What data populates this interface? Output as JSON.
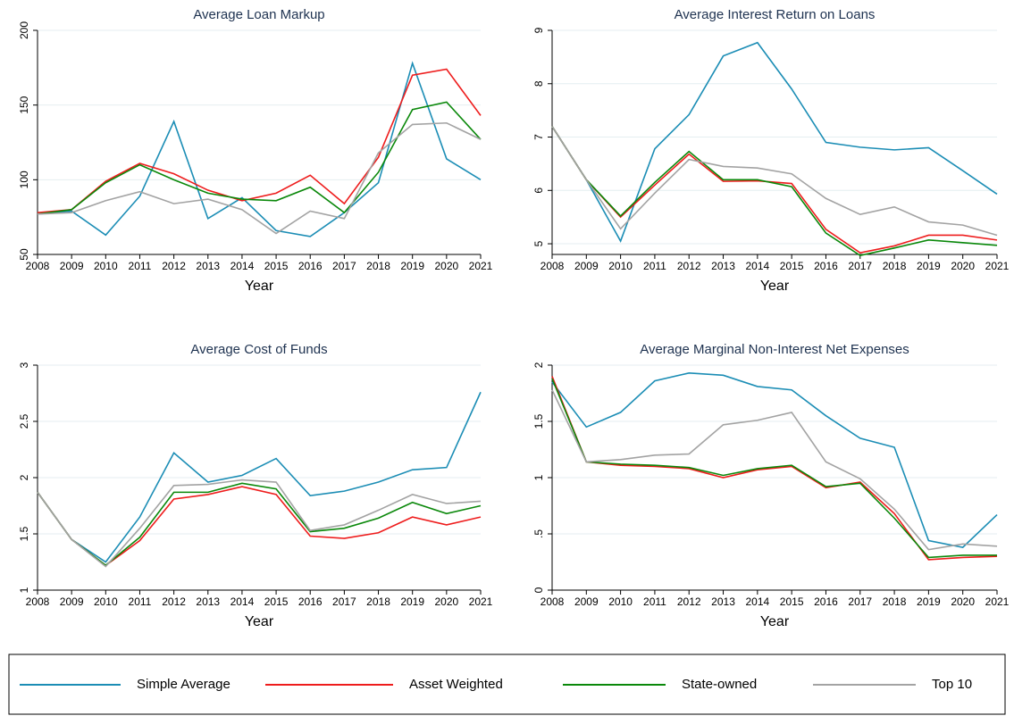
{
  "chart_data": [
    {
      "type": "line",
      "title": "Average Loan Markup",
      "x_label": "Year",
      "categories": [
        "2008",
        "2009",
        "2010",
        "2011",
        "2012",
        "2013",
        "2014",
        "2015",
        "2016",
        "2017",
        "2018",
        "2019",
        "2020",
        "2021"
      ],
      "ylim": [
        50,
        200
      ],
      "yticks": [
        50,
        100,
        150,
        200
      ],
      "grid": true,
      "series": [
        {
          "color": "#1b8db5",
          "values": [
            77,
            79,
            63,
            89,
            139,
            74,
            88,
            66,
            62,
            78,
            98,
            178,
            114,
            100
          ]
        },
        {
          "color": "#ee1c1c",
          "values": [
            78,
            80,
            99,
            111,
            104,
            93,
            86,
            91,
            103,
            84,
            115,
            170,
            174,
            143
          ]
        },
        {
          "color": "#0a880a",
          "values": [
            77,
            80,
            98,
            110,
            100,
            91,
            87,
            86,
            95,
            78,
            105,
            147,
            152,
            127
          ]
        },
        {
          "color": "#a3a3a3",
          "values": [
            77,
            78,
            86,
            92,
            84,
            87,
            80,
            64,
            79,
            74,
            118,
            137,
            138,
            127
          ]
        }
      ]
    },
    {
      "type": "line",
      "title": "Average Interest Return on Loans",
      "x_label": "Year",
      "categories": [
        "2008",
        "2009",
        "2010",
        "2011",
        "2012",
        "2013",
        "2014",
        "2015",
        "2016",
        "2017",
        "2018",
        "2019",
        "2020",
        "2021"
      ],
      "ylim": [
        4.8,
        9
      ],
      "yticks": [
        5,
        6,
        7,
        8,
        9
      ],
      "grid": true,
      "series": [
        {
          "color": "#1b8db5",
          "values": [
            7.2,
            6.2,
            5.05,
            6.78,
            7.42,
            8.52,
            8.77,
            7.9,
            6.9,
            6.81,
            6.76,
            6.8,
            6.37,
            5.93
          ]
        },
        {
          "color": "#ee1c1c",
          "values": [
            7.2,
            6.2,
            5.5,
            6.1,
            6.68,
            6.17,
            6.18,
            6.13,
            5.27,
            4.83,
            4.96,
            5.16,
            5.16,
            5.07
          ]
        },
        {
          "color": "#0a880a",
          "values": [
            7.2,
            6.2,
            5.52,
            6.15,
            6.73,
            6.2,
            6.2,
            6.07,
            5.2,
            4.78,
            4.92,
            5.07,
            5.02,
            4.97
          ]
        },
        {
          "color": "#a3a3a3",
          "values": [
            7.2,
            6.2,
            5.28,
            5.95,
            6.58,
            6.45,
            6.42,
            6.31,
            5.85,
            5.55,
            5.69,
            5.41,
            5.35,
            5.16
          ]
        }
      ]
    },
    {
      "type": "line",
      "title": "Average Cost of Funds",
      "x_label": "Year",
      "categories": [
        "2008",
        "2009",
        "2010",
        "2011",
        "2012",
        "2013",
        "2014",
        "2015",
        "2016",
        "2017",
        "2018",
        "2019",
        "2020",
        "2021"
      ],
      "ylim": [
        1,
        3
      ],
      "yticks": [
        1,
        1.5,
        2,
        2.5,
        3
      ],
      "grid": true,
      "series": [
        {
          "color": "#1b8db5",
          "values": [
            1.87,
            1.45,
            1.25,
            1.65,
            2.22,
            1.96,
            2.02,
            2.17,
            1.84,
            1.88,
            1.96,
            2.07,
            2.09,
            2.76
          ]
        },
        {
          "color": "#ee1c1c",
          "values": [
            1.87,
            1.45,
            1.22,
            1.44,
            1.81,
            1.85,
            1.92,
            1.85,
            1.48,
            1.46,
            1.51,
            1.65,
            1.58,
            1.65
          ]
        },
        {
          "color": "#0a880a",
          "values": [
            1.87,
            1.45,
            1.22,
            1.47,
            1.87,
            1.87,
            1.95,
            1.9,
            1.52,
            1.55,
            1.64,
            1.78,
            1.68,
            1.75
          ]
        },
        {
          "color": "#a3a3a3",
          "values": [
            1.87,
            1.45,
            1.21,
            1.55,
            1.93,
            1.94,
            1.98,
            1.96,
            1.53,
            1.58,
            1.71,
            1.85,
            1.77,
            1.79
          ]
        }
      ]
    },
    {
      "type": "line",
      "title": "Average Marginal Non-Interest Net Expenses",
      "x_label": "Year",
      "categories": [
        "2008",
        "2009",
        "2010",
        "2011",
        "2012",
        "2013",
        "2014",
        "2015",
        "2016",
        "2017",
        "2018",
        "2019",
        "2020",
        "2021"
      ],
      "ylim": [
        0,
        2
      ],
      "yticks": [
        0,
        {
          "value": 0.5,
          "label": ".5"
        },
        1,
        1.5,
        2
      ],
      "grid": true,
      "series": [
        {
          "color": "#1b8db5",
          "values": [
            1.85,
            1.45,
            1.58,
            1.86,
            1.93,
            1.91,
            1.81,
            1.78,
            1.55,
            1.35,
            1.27,
            0.44,
            0.38,
            0.67
          ]
        },
        {
          "color": "#ee1c1c",
          "values": [
            1.9,
            1.14,
            1.11,
            1.1,
            1.08,
            1.0,
            1.07,
            1.1,
            0.91,
            0.96,
            0.68,
            0.27,
            0.29,
            0.3
          ]
        },
        {
          "color": "#0a880a",
          "values": [
            1.88,
            1.14,
            1.12,
            1.11,
            1.09,
            1.02,
            1.08,
            1.11,
            0.92,
            0.95,
            0.64,
            0.29,
            0.31,
            0.31
          ]
        },
        {
          "color": "#a3a3a3",
          "values": [
            1.78,
            1.14,
            1.16,
            1.2,
            1.21,
            1.47,
            1.51,
            1.58,
            1.14,
            0.99,
            0.72,
            0.36,
            0.41,
            0.39
          ]
        }
      ]
    }
  ],
  "legend": [
    {
      "name": "Simple Average",
      "color": "#1b8db5"
    },
    {
      "name": "Asset Weighted",
      "color": "#ee1c1c"
    },
    {
      "name": "State-owned",
      "color": "#0a880a"
    },
    {
      "name": "Top 10",
      "color": "#a3a3a3"
    }
  ]
}
